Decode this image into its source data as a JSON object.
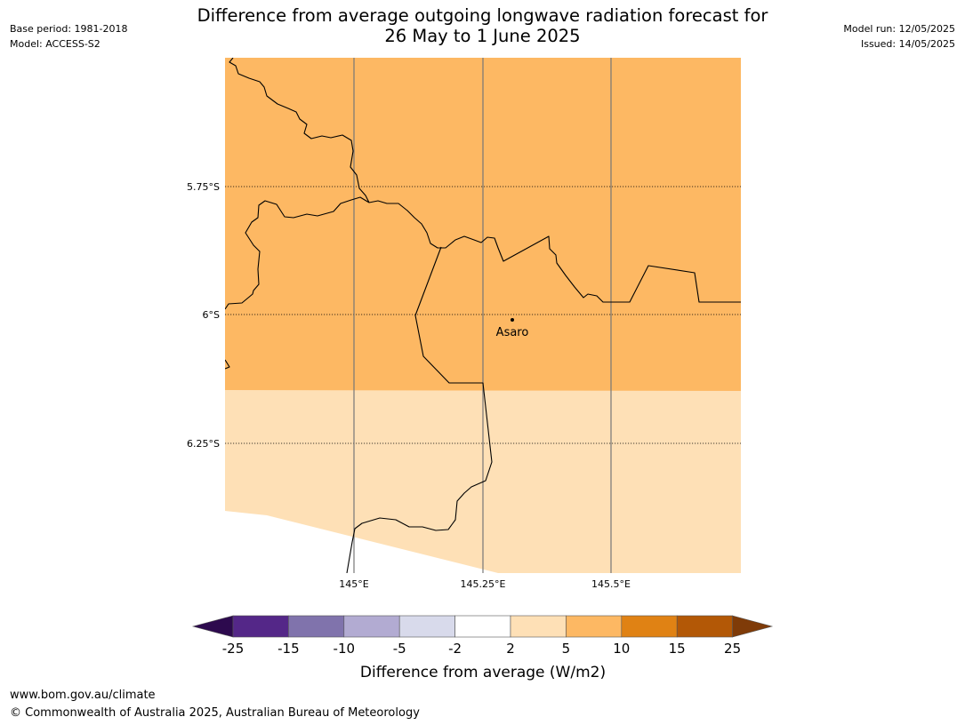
{
  "header": {
    "title_line1": "Difference from average outgoing longwave radiation forecast for",
    "title_line2": "26 May to 1 June 2025",
    "base_period": "Base period: 1981-2018",
    "model": "Model: ACCESS-S2",
    "model_run": "Model run: 12/05/2025",
    "issued": "Issued: 14/05/2025"
  },
  "map": {
    "latitude_labels": [
      "5.75°S",
      "6°S",
      "6.25°S"
    ],
    "longitude_labels": [
      "145°E",
      "145.25°E",
      "145.5°E"
    ],
    "place_label": "Asaro",
    "north_band_class": "5 to 10 W/m2",
    "south_band_class": "2 to 5 W/m2"
  },
  "colorbar": {
    "ticks": [
      "-25",
      "-15",
      "-10",
      "-5",
      "-2",
      "2",
      "5",
      "10",
      "15",
      "25"
    ],
    "label": "Difference from average (W/m2)",
    "colors": {
      "below_min": "#2d0a4e",
      "bins": [
        "#542788",
        "#8073ac",
        "#b2abd2",
        "#d8daeb",
        "#ffffff",
        "#fee0b6",
        "#fdb863",
        "#e08214",
        "#b35806"
      ],
      "above_max": "#7f3b08"
    }
  },
  "footer": {
    "url": "www.bom.gov.au/climate",
    "copyright": "© Commonwealth of Australia 2025, Australian Bureau of Meteorology"
  }
}
